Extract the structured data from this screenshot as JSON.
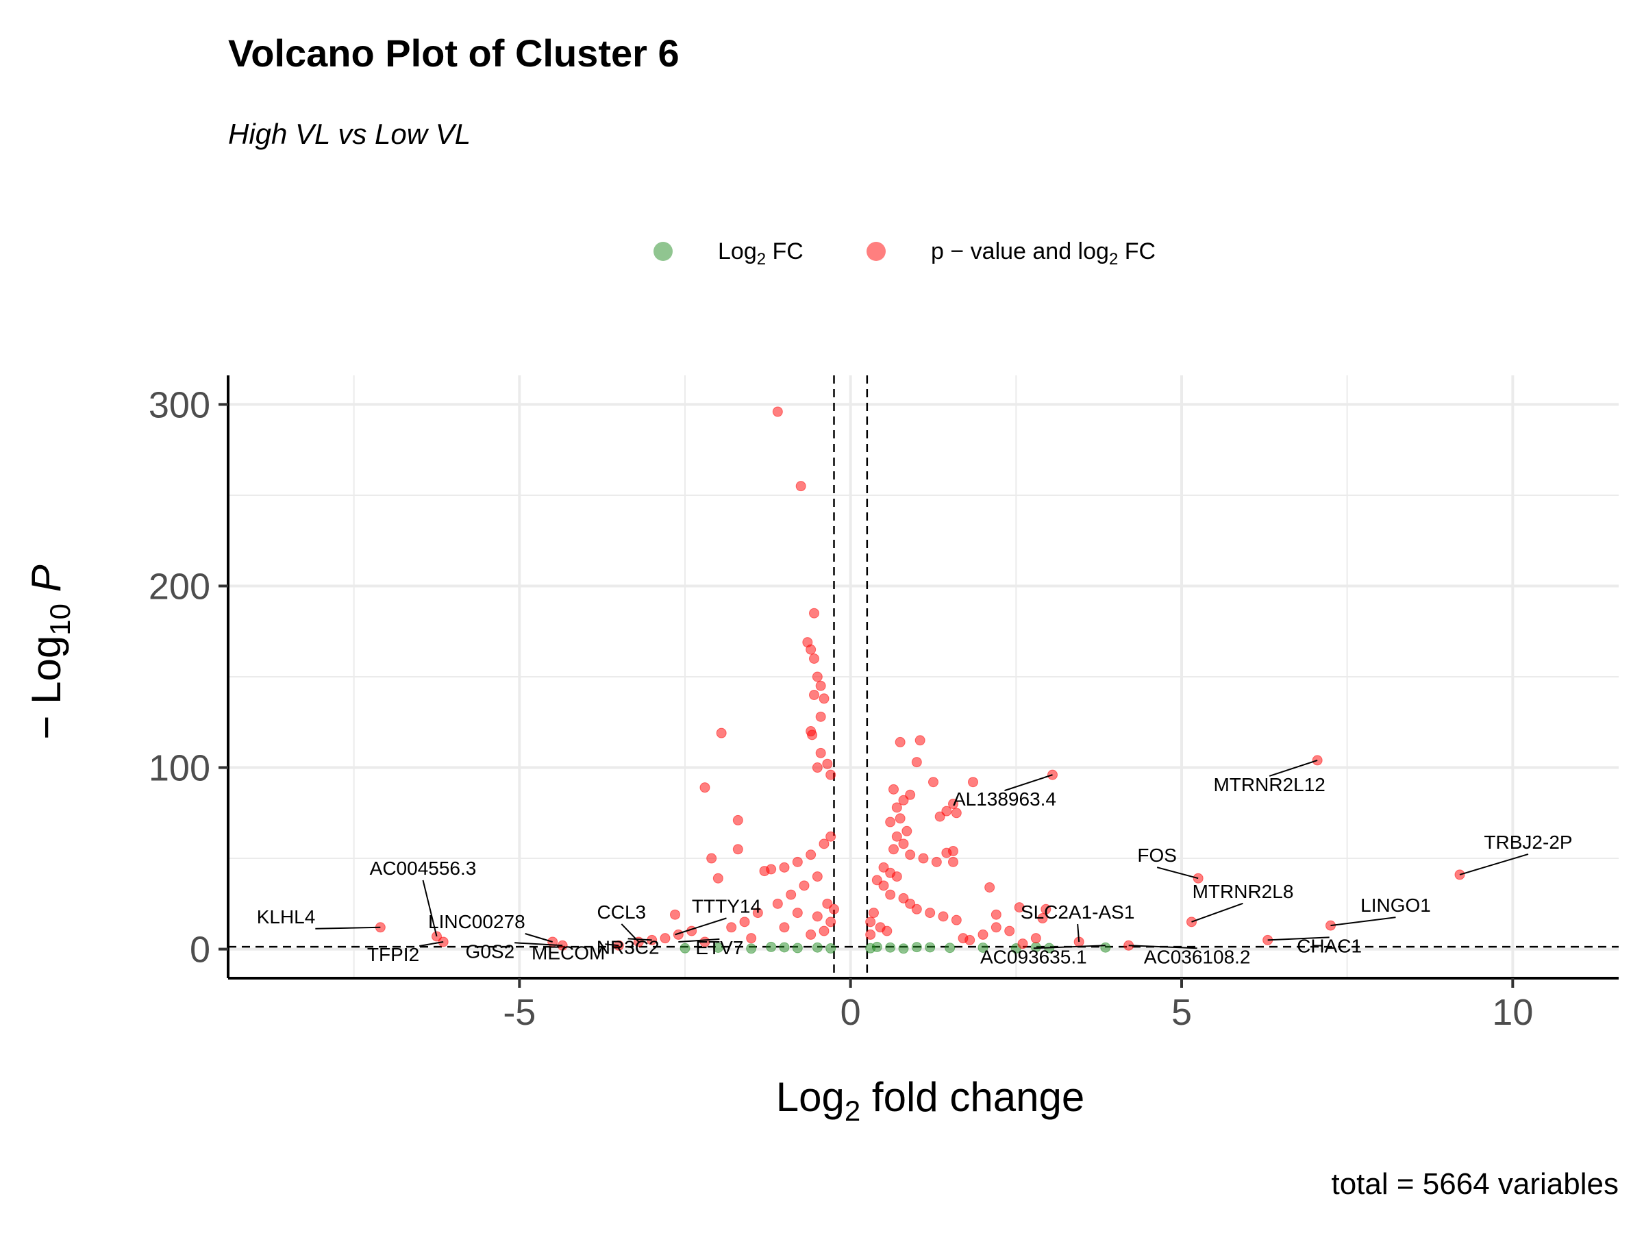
{
  "chart_data": {
    "type": "scatter",
    "title": "Volcano Plot of Cluster 6",
    "subtitle": "High VL vs Low VL",
    "xlabel": "Log2 fold change",
    "ylabel": "-Log10 P",
    "caption": "total = 5664 variables",
    "xlim": [
      -9.4,
      11.6
    ],
    "ylim": [
      -16,
      316
    ],
    "x_ticks": [
      -5,
      0,
      5,
      10
    ],
    "y_ticks": [
      0,
      100,
      200,
      300
    ],
    "x_tick_labels": [
      "-5",
      "0",
      "5",
      "10"
    ],
    "y_tick_labels": [
      "0",
      "100",
      "200",
      "300"
    ],
    "grid": true,
    "legend_position": "top",
    "thresholds": {
      "log2fc": 0.25,
      "neg_log10_p": 1.3
    },
    "colors": {
      "log2fc": "#228B22",
      "p_and_log2fc": "#FF0000"
    },
    "series": [
      {
        "name": "Log2 FC",
        "points": [
          [
            -2.5,
            0.5
          ],
          [
            -2,
            0.8
          ],
          [
            -1.5,
            0.3
          ],
          [
            -1,
            1
          ],
          [
            -0.8,
            0.6
          ],
          [
            -0.5,
            0.9
          ],
          [
            -0.3,
            0.4
          ],
          [
            0.3,
            0.5
          ],
          [
            0.6,
            0.9
          ],
          [
            1,
            1.1
          ],
          [
            1.5,
            0.7
          ],
          [
            2,
            0.8
          ],
          [
            2.5,
            0.4
          ],
          [
            2.8,
            1.1
          ],
          [
            3.0,
            0.6
          ],
          [
            3.85,
            0.9
          ],
          [
            0.4,
            1.2
          ],
          [
            0.8,
            0.3
          ],
          [
            1.2,
            1.0
          ],
          [
            -1.2,
            1.2
          ]
        ]
      },
      {
        "name": "p – value and log2 FC",
        "points": [
          [
            -1.1,
            296
          ],
          [
            -0.75,
            255
          ],
          [
            -0.55,
            185
          ],
          [
            -0.65,
            169
          ],
          [
            -0.6,
            165
          ],
          [
            -0.55,
            160
          ],
          [
            -0.5,
            150
          ],
          [
            -0.45,
            145
          ],
          [
            -0.55,
            140
          ],
          [
            -0.4,
            138
          ],
          [
            -0.45,
            128
          ],
          [
            -0.6,
            120
          ],
          [
            -0.58,
            118
          ],
          [
            -0.45,
            108
          ],
          [
            -0.35,
            102
          ],
          [
            -0.3,
            96
          ],
          [
            -0.5,
            100
          ],
          [
            -1.95,
            119
          ],
          [
            -2.2,
            89
          ],
          [
            -1.7,
            71
          ],
          [
            -2.1,
            50
          ],
          [
            -1.7,
            55
          ],
          [
            -2,
            39
          ],
          [
            -1.2,
            44
          ],
          [
            -1.3,
            43
          ],
          [
            -1.0,
            45
          ],
          [
            -0.8,
            48
          ],
          [
            -0.6,
            52
          ],
          [
            -0.4,
            58
          ],
          [
            -0.3,
            62
          ],
          [
            -0.5,
            40
          ],
          [
            -0.7,
            35
          ],
          [
            -0.9,
            30
          ],
          [
            -1.1,
            25
          ],
          [
            -1.4,
            20
          ],
          [
            -1.6,
            15
          ],
          [
            -1.8,
            12
          ],
          [
            -2.4,
            10
          ],
          [
            -2.6,
            8
          ],
          [
            -2.8,
            6
          ],
          [
            -3.0,
            5
          ],
          [
            -3.2,
            4
          ],
          [
            -3.5,
            2
          ],
          [
            -4.35,
            2
          ],
          [
            -4.5,
            4
          ],
          [
            -6.15,
            4
          ],
          [
            -6.25,
            7
          ],
          [
            -7.1,
            12
          ],
          [
            -2.65,
            19
          ],
          [
            -0.35,
            25
          ],
          [
            -0.25,
            22
          ],
          [
            -0.3,
            15
          ],
          [
            -0.5,
            18
          ],
          [
            -0.8,
            20
          ],
          [
            -1.0,
            12
          ],
          [
            -0.4,
            10
          ],
          [
            -0.6,
            8
          ],
          [
            -1.5,
            6
          ],
          [
            -2.2,
            4
          ],
          [
            0.75,
            114
          ],
          [
            1.05,
            115
          ],
          [
            1.0,
            103
          ],
          [
            1.25,
            92
          ],
          [
            1.55,
            80
          ],
          [
            1.45,
            76
          ],
          [
            1.6,
            75
          ],
          [
            1.35,
            73
          ],
          [
            1.85,
            92
          ],
          [
            3.05,
            96
          ],
          [
            0.65,
            88
          ],
          [
            0.9,
            85
          ],
          [
            0.8,
            82
          ],
          [
            0.7,
            78
          ],
          [
            0.75,
            72
          ],
          [
            0.6,
            70
          ],
          [
            0.85,
            65
          ],
          [
            0.7,
            62
          ],
          [
            0.8,
            58
          ],
          [
            0.65,
            55
          ],
          [
            0.9,
            52
          ],
          [
            1.1,
            50
          ],
          [
            1.3,
            48
          ],
          [
            1.45,
            53
          ],
          [
            1.55,
            54
          ],
          [
            1.55,
            48
          ],
          [
            0.5,
            45
          ],
          [
            0.6,
            42
          ],
          [
            0.7,
            40
          ],
          [
            0.4,
            38
          ],
          [
            0.5,
            35
          ],
          [
            0.6,
            30
          ],
          [
            0.8,
            28
          ],
          [
            0.9,
            25
          ],
          [
            1.0,
            22
          ],
          [
            1.2,
            20
          ],
          [
            1.4,
            18
          ],
          [
            1.6,
            16
          ],
          [
            2.1,
            34
          ],
          [
            2.55,
            23
          ],
          [
            2.95,
            22
          ],
          [
            2.2,
            19
          ],
          [
            2.9,
            17
          ],
          [
            2.2,
            12
          ],
          [
            2.4,
            10
          ],
          [
            2.0,
            8
          ],
          [
            2.8,
            6
          ],
          [
            3.45,
            4
          ],
          [
            4.2,
            2
          ],
          [
            5.25,
            39
          ],
          [
            5.15,
            15
          ],
          [
            7.05,
            104
          ],
          [
            9.2,
            41
          ],
          [
            7.25,
            13
          ],
          [
            6.3,
            5
          ],
          [
            0.35,
            20
          ],
          [
            0.3,
            15
          ],
          [
            0.45,
            12
          ],
          [
            0.3,
            8
          ],
          [
            0.55,
            10
          ],
          [
            1.7,
            6
          ],
          [
            1.8,
            5
          ],
          [
            2.6,
            3
          ]
        ]
      }
    ],
    "annotations": [
      {
        "label": "AC004556.3",
        "x": -6.25,
        "y": 7
      },
      {
        "label": "KLHL4",
        "x": -7.1,
        "y": 12
      },
      {
        "label": "TFPI2",
        "x": -6.15,
        "y": 4
      },
      {
        "label": "LINC00278",
        "x": -4.5,
        "y": 4
      },
      {
        "label": "G0S2",
        "x": -4.35,
        "y": 2
      },
      {
        "label": "MECOM",
        "x": -3.5,
        "y": 2
      },
      {
        "label": "NR3C2",
        "x": -3.0,
        "y": 5
      },
      {
        "label": "CCL3",
        "x": -3.2,
        "y": 4
      },
      {
        "label": "TTTY14",
        "x": -2.65,
        "y": 8
      },
      {
        "label": "ETV7",
        "x": -2.6,
        "y": 4
      },
      {
        "label": "AL138963.4",
        "x": 3.05,
        "y": 96
      },
      {
        "label": "SLC2A1-AS1",
        "x": 3.45,
        "y": 4
      },
      {
        "label": "AC093635.1",
        "x": 3.85,
        "y": 2
      },
      {
        "label": "AC036108.2",
        "x": 4.2,
        "y": 2
      },
      {
        "label": "FOS",
        "x": 5.25,
        "y": 39
      },
      {
        "label": "MTRNR2L8",
        "x": 5.15,
        "y": 15
      },
      {
        "label": "MTRNR2L12",
        "x": 7.05,
        "y": 104
      },
      {
        "label": "TRBJ2-2P",
        "x": 9.2,
        "y": 41
      },
      {
        "label": "LINGO1",
        "x": 7.25,
        "y": 13
      },
      {
        "label": "CHAC1",
        "x": 6.3,
        "y": 5
      }
    ]
  }
}
